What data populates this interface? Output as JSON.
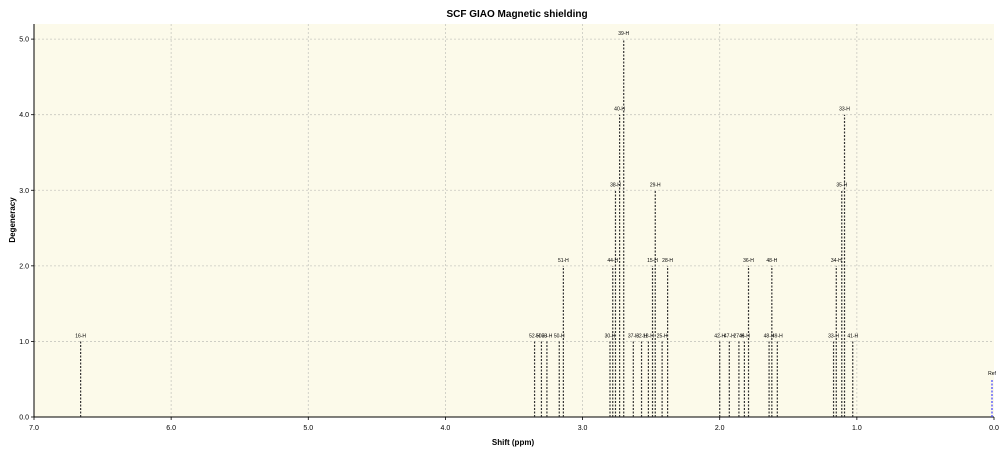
{
  "chart_data": {
    "type": "stick",
    "title": "SCF GIAO Magnetic shielding",
    "xlabel": "Shift (ppm)",
    "ylabel": "Degeneracy",
    "xlim": [
      7.0,
      0.0
    ],
    "ylim": [
      0,
      5.2
    ],
    "x_reversed": true,
    "grid": true,
    "x_ticks": [
      "7.0",
      "6.0",
      "5.0",
      "4.0",
      "3.0",
      "2.0",
      "1.0",
      "0.0"
    ],
    "y_ticks": [
      "0.0",
      "1.0",
      "2.0",
      "3.0",
      "4.0",
      "5.0"
    ],
    "peaks": [
      {
        "x": 6.66,
        "y": 1,
        "label": "16-H"
      },
      {
        "x": 3.35,
        "y": 1,
        "label": "52-H"
      },
      {
        "x": 3.3,
        "y": 1,
        "label": "50-H"
      },
      {
        "x": 3.26,
        "y": 1,
        "label": "53-H"
      },
      {
        "x": 3.17,
        "y": 1,
        "label": "50-H"
      },
      {
        "x": 3.14,
        "y": 2,
        "label": "51-H"
      },
      {
        "x": 2.8,
        "y": 1,
        "label": "30-H"
      },
      {
        "x": 2.78,
        "y": 2,
        "label": "44-H"
      },
      {
        "x": 2.76,
        "y": 3,
        "label": "38-H"
      },
      {
        "x": 2.73,
        "y": 4,
        "label": "40-H"
      },
      {
        "x": 2.7,
        "y": 5,
        "label": "39-H"
      },
      {
        "x": 2.63,
        "y": 1,
        "label": "37-H"
      },
      {
        "x": 2.57,
        "y": 1,
        "label": "32-H"
      },
      {
        "x": 2.52,
        "y": 1,
        "label": "18-H"
      },
      {
        "x": 2.49,
        "y": 2,
        "label": "15-H"
      },
      {
        "x": 2.47,
        "y": 3,
        "label": "29-H"
      },
      {
        "x": 2.42,
        "y": 1,
        "label": "25-H"
      },
      {
        "x": 2.38,
        "y": 2,
        "label": "28-H"
      },
      {
        "x": 2.0,
        "y": 1,
        "label": "42-H"
      },
      {
        "x": 1.93,
        "y": 1,
        "label": "47-H"
      },
      {
        "x": 1.86,
        "y": 1,
        "label": "27-H"
      },
      {
        "x": 1.82,
        "y": 1,
        "label": "46-H"
      },
      {
        "x": 1.79,
        "y": 2,
        "label": "36-H"
      },
      {
        "x": 1.64,
        "y": 1,
        "label": "48-H"
      },
      {
        "x": 1.62,
        "y": 2,
        "label": "48-H"
      },
      {
        "x": 1.58,
        "y": 1,
        "label": "49-H"
      },
      {
        "x": 1.17,
        "y": 1,
        "label": "33-H"
      },
      {
        "x": 1.15,
        "y": 2,
        "label": "34-H"
      },
      {
        "x": 1.11,
        "y": 3,
        "label": "35-H"
      },
      {
        "x": 1.09,
        "y": 4,
        "label": "33-H"
      },
      {
        "x": 1.03,
        "y": 1,
        "label": "41-H"
      }
    ],
    "reference": {
      "x": 0.0,
      "y": 0.5,
      "label": "Ref"
    },
    "colors": {
      "background": "#ffffff",
      "plot_area": "#fcfaea",
      "grid": "#c8c8c0",
      "peaks": "#333333",
      "reference": "#4040ff"
    }
  }
}
